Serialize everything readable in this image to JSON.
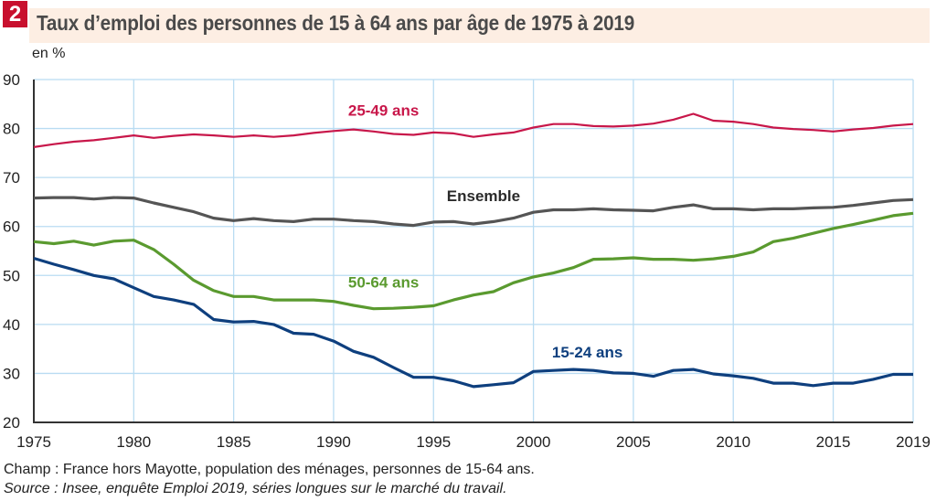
{
  "header": {
    "badge": "2",
    "title": "Taux d’emploi des personnes de 15 à 64 ans par âge de 1975 à 2019",
    "unit": "en %"
  },
  "footnotes": {
    "champ": "Champ : France hors Mayotte, population des ménages, personnes de 15-64 ans.",
    "source": "Source : Insee, enquête Emploi 2019, séries longues sur le marché du travail."
  },
  "chart_data": {
    "type": "line",
    "title": "Taux d’emploi des personnes de 15 à 64 ans par âge de 1975 à 2019",
    "xlabel": "",
    "ylabel": "en %",
    "xlim": [
      1975,
      2019
    ],
    "ylim": [
      20,
      90
    ],
    "grid": true,
    "x_ticks": [
      1975,
      1980,
      1985,
      1990,
      1995,
      2000,
      2005,
      2010,
      2015,
      2019
    ],
    "y_ticks": [
      20,
      30,
      40,
      50,
      60,
      70,
      80,
      90
    ],
    "legend": "inline labels",
    "x": [
      1975,
      1976,
      1977,
      1978,
      1979,
      1980,
      1981,
      1982,
      1983,
      1984,
      1985,
      1986,
      1987,
      1988,
      1989,
      1990,
      1991,
      1992,
      1993,
      1994,
      1995,
      1996,
      1997,
      1998,
      1999,
      2000,
      2001,
      2002,
      2003,
      2004,
      2005,
      2006,
      2007,
      2008,
      2009,
      2010,
      2011,
      2012,
      2013,
      2014,
      2015,
      2016,
      2017,
      2018,
      2019
    ],
    "series": [
      {
        "name": "25-49 ans",
        "color": "#c8174a",
        "label_at": [
          1992.5,
          82.6
        ],
        "values": [
          76.2,
          76.8,
          77.3,
          77.6,
          78.1,
          78.6,
          78.1,
          78.5,
          78.8,
          78.6,
          78.3,
          78.6,
          78.3,
          78.6,
          79.1,
          79.5,
          79.8,
          79.4,
          78.9,
          78.7,
          79.2,
          79.0,
          78.3,
          78.8,
          79.2,
          80.2,
          80.9,
          80.9,
          80.5,
          80.4,
          80.6,
          81.0,
          81.8,
          83.0,
          81.6,
          81.4,
          80.9,
          80.2,
          79.9,
          79.7,
          79.4,
          79.8,
          80.1,
          80.6,
          80.9
        ]
      },
      {
        "name": "Ensemble",
        "color": "#555555",
        "label_at": [
          1997.5,
          65.2
        ],
        "values": [
          65.8,
          65.9,
          65.9,
          65.6,
          65.9,
          65.8,
          64.8,
          63.9,
          63.0,
          61.7,
          61.2,
          61.6,
          61.2,
          61.0,
          61.5,
          61.5,
          61.2,
          61.0,
          60.5,
          60.2,
          60.9,
          61.0,
          60.5,
          61.0,
          61.7,
          62.9,
          63.4,
          63.4,
          63.6,
          63.4,
          63.3,
          63.2,
          63.9,
          64.4,
          63.6,
          63.6,
          63.4,
          63.6,
          63.6,
          63.8,
          63.9,
          64.3,
          64.8,
          65.3,
          65.5
        ]
      },
      {
        "name": "50-64 ans",
        "color": "#5a9a2f",
        "label_at": [
          1992.5,
          47.5
        ],
        "values": [
          56.9,
          56.5,
          57.0,
          56.2,
          57.0,
          57.2,
          55.3,
          52.3,
          49.0,
          46.9,
          45.7,
          45.7,
          45.0,
          45.0,
          45.0,
          44.7,
          43.9,
          43.2,
          43.3,
          43.5,
          43.8,
          45.0,
          46.0,
          46.7,
          48.5,
          49.7,
          50.5,
          51.6,
          53.3,
          53.4,
          53.6,
          53.3,
          53.3,
          53.1,
          53.4,
          53.9,
          54.8,
          56.9,
          57.6,
          58.6,
          59.6,
          60.4,
          61.3,
          62.2,
          62.7
        ]
      },
      {
        "name": "15-24 ans",
        "color": "#0e3f7e",
        "label_at": [
          2002.7,
          33.3
        ],
        "values": [
          53.5,
          52.3,
          51.2,
          50.0,
          49.3,
          47.5,
          45.7,
          45.0,
          44.1,
          41.0,
          40.5,
          40.6,
          40.0,
          38.2,
          38.0,
          36.6,
          34.5,
          33.3,
          31.2,
          29.2,
          29.2,
          28.5,
          27.3,
          27.7,
          28.1,
          30.4,
          30.6,
          30.8,
          30.6,
          30.1,
          30.0,
          29.4,
          30.6,
          30.8,
          29.9,
          29.5,
          29.0,
          28.0,
          28.0,
          27.5,
          28.0,
          28.0,
          28.8,
          29.8,
          29.8
        ]
      }
    ]
  },
  "colors": {
    "badge": "#c8102e",
    "title_bg": "#fdeee3",
    "grid": "#b9dcf2",
    "axis": "#333333"
  }
}
